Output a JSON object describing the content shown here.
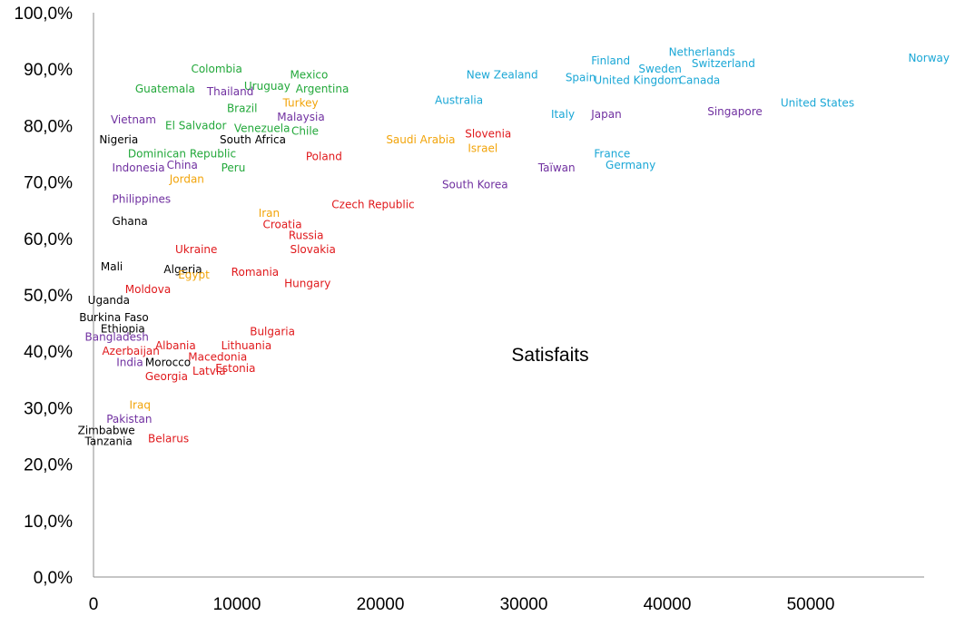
{
  "chart_data": {
    "type": "scatter",
    "title": "",
    "xlabel": "",
    "ylabel": "",
    "xlim": [
      0,
      57000
    ],
    "ylim": [
      0,
      100
    ],
    "x_ticks": [
      0,
      10000,
      20000,
      30000,
      40000,
      50000
    ],
    "x_tick_labels": [
      "0",
      "10000",
      "20000",
      "30000",
      "40000",
      "50000"
    ],
    "y_ticks": [
      0,
      10,
      20,
      30,
      40,
      50,
      60,
      70,
      80,
      90,
      100
    ],
    "y_tick_labels": [
      "0,0%",
      "10,0%",
      "20,0%",
      "30,0%",
      "40,0%",
      "50,0%",
      "60,0%",
      "70,0%",
      "80,0%",
      "90,0%",
      "100,0%"
    ],
    "grid": false,
    "annotation": "Satisfaits",
    "group_colors": {
      "cyan": "#1aa7d6",
      "green": "#22a83a",
      "purple": "#7030a0",
      "red": "#e0191c",
      "orange": "#f2a40a",
      "black": "#000000"
    },
    "points": [
      {
        "label": "Norway",
        "x": 56800,
        "y": 92,
        "group": "cyan"
      },
      {
        "label": "Netherlands",
        "x": 40100,
        "y": 93,
        "group": "cyan"
      },
      {
        "label": "Switzerland",
        "x": 41700,
        "y": 91,
        "group": "cyan"
      },
      {
        "label": "Finland",
        "x": 34700,
        "y": 91.5,
        "group": "cyan"
      },
      {
        "label": "Sweden",
        "x": 38000,
        "y": 90,
        "group": "cyan"
      },
      {
        "label": "New Zealand",
        "x": 26000,
        "y": 89,
        "group": "cyan"
      },
      {
        "label": "Spain",
        "x": 32900,
        "y": 88.5,
        "group": "cyan"
      },
      {
        "label": "United Kingdom",
        "x": 34900,
        "y": 88,
        "group": "cyan"
      },
      {
        "label": "Canada",
        "x": 40800,
        "y": 88,
        "group": "cyan"
      },
      {
        "label": "Australia",
        "x": 23800,
        "y": 84.5,
        "group": "cyan"
      },
      {
        "label": "United States",
        "x": 47900,
        "y": 84,
        "group": "cyan"
      },
      {
        "label": "Italy",
        "x": 31900,
        "y": 82,
        "group": "cyan"
      },
      {
        "label": "Japan",
        "x": 34700,
        "y": 82,
        "group": "purple"
      },
      {
        "label": "Singapore",
        "x": 42800,
        "y": 82.5,
        "group": "purple"
      },
      {
        "label": "France",
        "x": 34900,
        "y": 75,
        "group": "cyan"
      },
      {
        "label": "Germany",
        "x": 35700,
        "y": 73,
        "group": "cyan"
      },
      {
        "label": "Taïwan",
        "x": 31000,
        "y": 72.5,
        "group": "purple"
      },
      {
        "label": "South Korea",
        "x": 24300,
        "y": 69.5,
        "group": "purple"
      },
      {
        "label": "Slovenia",
        "x": 25900,
        "y": 78.5,
        "group": "red"
      },
      {
        "label": "Israel",
        "x": 26100,
        "y": 76,
        "group": "orange"
      },
      {
        "label": "Saudi Arabia",
        "x": 20400,
        "y": 77.5,
        "group": "orange"
      },
      {
        "label": "Czech Republic",
        "x": 16600,
        "y": 66,
        "group": "red"
      },
      {
        "label": "Poland",
        "x": 14800,
        "y": 74.5,
        "group": "red"
      },
      {
        "label": "Mexico",
        "x": 13700,
        "y": 89,
        "group": "green"
      },
      {
        "label": "Argentina",
        "x": 14100,
        "y": 86.5,
        "group": "green"
      },
      {
        "label": "Uruguay",
        "x": 10500,
        "y": 87,
        "group": "green"
      },
      {
        "label": "Colombia",
        "x": 6800,
        "y": 90,
        "group": "green"
      },
      {
        "label": "Thailand",
        "x": 7900,
        "y": 86,
        "group": "purple"
      },
      {
        "label": "Guatemala",
        "x": 2900,
        "y": 86.5,
        "group": "green"
      },
      {
        "label": "Turkey",
        "x": 13200,
        "y": 84,
        "group": "orange"
      },
      {
        "label": "Brazil",
        "x": 9300,
        "y": 83,
        "group": "green"
      },
      {
        "label": "Malaysia",
        "x": 12800,
        "y": 81.5,
        "group": "purple"
      },
      {
        "label": "El Salvador",
        "x": 5000,
        "y": 80,
        "group": "green"
      },
      {
        "label": "Vietnam",
        "x": 1200,
        "y": 81,
        "group": "purple"
      },
      {
        "label": "Chile",
        "x": 13800,
        "y": 79,
        "group": "green"
      },
      {
        "label": "Venezuela",
        "x": 9800,
        "y": 79.5,
        "group": "green"
      },
      {
        "label": "South Africa",
        "x": 8800,
        "y": 77.5,
        "group": "black"
      },
      {
        "label": "Nigeria",
        "x": 400,
        "y": 77.5,
        "group": "black"
      },
      {
        "label": "Dominican Republic",
        "x": 2400,
        "y": 75,
        "group": "green"
      },
      {
        "label": "China",
        "x": 5100,
        "y": 73,
        "group": "purple"
      },
      {
        "label": "Indonesia",
        "x": 1300,
        "y": 72.5,
        "group": "purple"
      },
      {
        "label": "Peru",
        "x": 8900,
        "y": 72.5,
        "group": "green"
      },
      {
        "label": "Jordan",
        "x": 5300,
        "y": 70.5,
        "group": "orange"
      },
      {
        "label": "Philippines",
        "x": 1300,
        "y": 67,
        "group": "purple"
      },
      {
        "label": "Iran",
        "x": 11500,
        "y": 64.5,
        "group": "orange"
      },
      {
        "label": "Croatia",
        "x": 11800,
        "y": 62.5,
        "group": "red"
      },
      {
        "label": "Ghana",
        "x": 1300,
        "y": 63,
        "group": "black"
      },
      {
        "label": "Russia",
        "x": 13600,
        "y": 60.5,
        "group": "red"
      },
      {
        "label": "Slovakia",
        "x": 13700,
        "y": 58,
        "group": "red"
      },
      {
        "label": "Ukraine",
        "x": 5700,
        "y": 58,
        "group": "red"
      },
      {
        "label": "Mali",
        "x": 500,
        "y": 55,
        "group": "black"
      },
      {
        "label": "Algeria",
        "x": 4900,
        "y": 54.5,
        "group": "black"
      },
      {
        "label": "Egypt",
        "x": 5900,
        "y": 53.5,
        "group": "orange"
      },
      {
        "label": "Romania",
        "x": 9600,
        "y": 54,
        "group": "red"
      },
      {
        "label": "Hungary",
        "x": 13300,
        "y": 52,
        "group": "red"
      },
      {
        "label": "Moldova",
        "x": 2200,
        "y": 51,
        "group": "red"
      },
      {
        "label": "Uganda",
        "x": -400,
        "y": 49,
        "group": "black"
      },
      {
        "label": "Burkina Faso",
        "x": -1000,
        "y": 46,
        "group": "black"
      },
      {
        "label": "Ethiopia",
        "x": 500,
        "y": 44,
        "group": "black"
      },
      {
        "label": "Bangladesh",
        "x": -600,
        "y": 42.5,
        "group": "purple"
      },
      {
        "label": "Bulgaria",
        "x": 10900,
        "y": 43.5,
        "group": "red"
      },
      {
        "label": "Albania",
        "x": 4300,
        "y": 41,
        "group": "red"
      },
      {
        "label": "Lithuania",
        "x": 8900,
        "y": 41,
        "group": "red"
      },
      {
        "label": "Azerbaijan",
        "x": 600,
        "y": 40,
        "group": "red"
      },
      {
        "label": "Macedonia",
        "x": 6600,
        "y": 39,
        "group": "red"
      },
      {
        "label": "Morocco",
        "x": 3600,
        "y": 38,
        "group": "black"
      },
      {
        "label": "India",
        "x": 1600,
        "y": 38,
        "group": "purple"
      },
      {
        "label": "Estonia",
        "x": 8500,
        "y": 37,
        "group": "red"
      },
      {
        "label": "Latvia",
        "x": 6900,
        "y": 36.5,
        "group": "red"
      },
      {
        "label": "Georgia",
        "x": 3600,
        "y": 35.5,
        "group": "red"
      },
      {
        "label": "Iraq",
        "x": 2500,
        "y": 30.5,
        "group": "orange"
      },
      {
        "label": "Pakistan",
        "x": 900,
        "y": 28,
        "group": "purple"
      },
      {
        "label": "Zimbabwe",
        "x": -1100,
        "y": 26,
        "group": "black"
      },
      {
        "label": "Tanzania",
        "x": -600,
        "y": 24,
        "group": "black"
      },
      {
        "label": "Belarus",
        "x": 3800,
        "y": 24.5,
        "group": "red"
      }
    ]
  }
}
